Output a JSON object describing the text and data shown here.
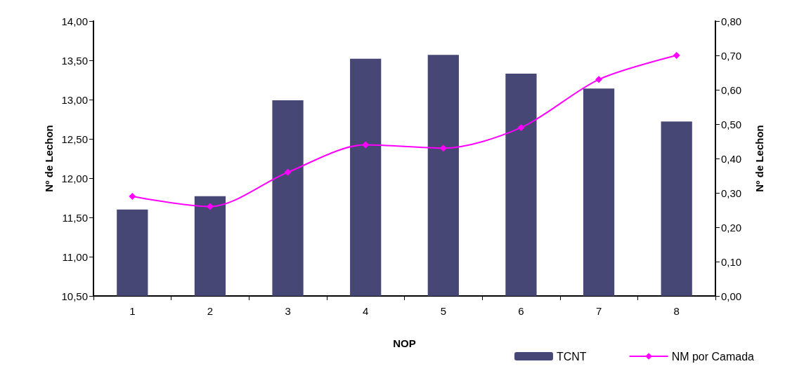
{
  "chart_data": {
    "type": "bar",
    "xlabel": "NOP",
    "ylabel": "Nº de Lechon",
    "y2label": "Nº de Lechon",
    "categories": [
      "1",
      "2",
      "3",
      "4",
      "5",
      "6",
      "7",
      "8"
    ],
    "series": [
      {
        "name": "TCNT",
        "color": "#464775",
        "values": [
          11.6,
          11.77,
          12.99,
          13.52,
          13.57,
          13.33,
          13.14,
          12.72
        ]
      },
      {
        "name": "NM por Camada",
        "type": "line",
        "axis": "y2",
        "color": "#ff00ff",
        "marker": "diamond",
        "values": [
          0.29,
          0.26,
          0.36,
          0.44,
          0.43,
          0.49,
          0.63,
          0.7
        ]
      }
    ],
    "ylim": [
      10.5,
      14
    ],
    "yticks": [
      {
        "value": 10.5,
        "label": "10,50"
      },
      {
        "value": 11,
        "label": "11,00"
      },
      {
        "value": 11.5,
        "label": "11,50"
      },
      {
        "value": 12,
        "label": "12,00"
      },
      {
        "value": 12.5,
        "label": "12,50"
      },
      {
        "value": 13,
        "label": "13,00"
      },
      {
        "value": 13.5,
        "label": "13,50"
      },
      {
        "value": 14,
        "label": "14,00"
      }
    ],
    "y2lim": [
      0,
      0.8
    ],
    "y2ticks": [
      {
        "value": 0,
        "label": "0,00"
      },
      {
        "value": 0.1,
        "label": "0,10"
      },
      {
        "value": 0.2,
        "label": "0,20"
      },
      {
        "value": 0.3,
        "label": "0,30"
      },
      {
        "value": 0.4,
        "label": "0,40"
      },
      {
        "value": 0.5,
        "label": "0,50"
      },
      {
        "value": 0.6,
        "label": "0,60"
      },
      {
        "value": 0.7,
        "label": "0,70"
      },
      {
        "value": 0.8,
        "label": "0,80"
      }
    ],
    "legend": "bottom right",
    "grid": false
  }
}
